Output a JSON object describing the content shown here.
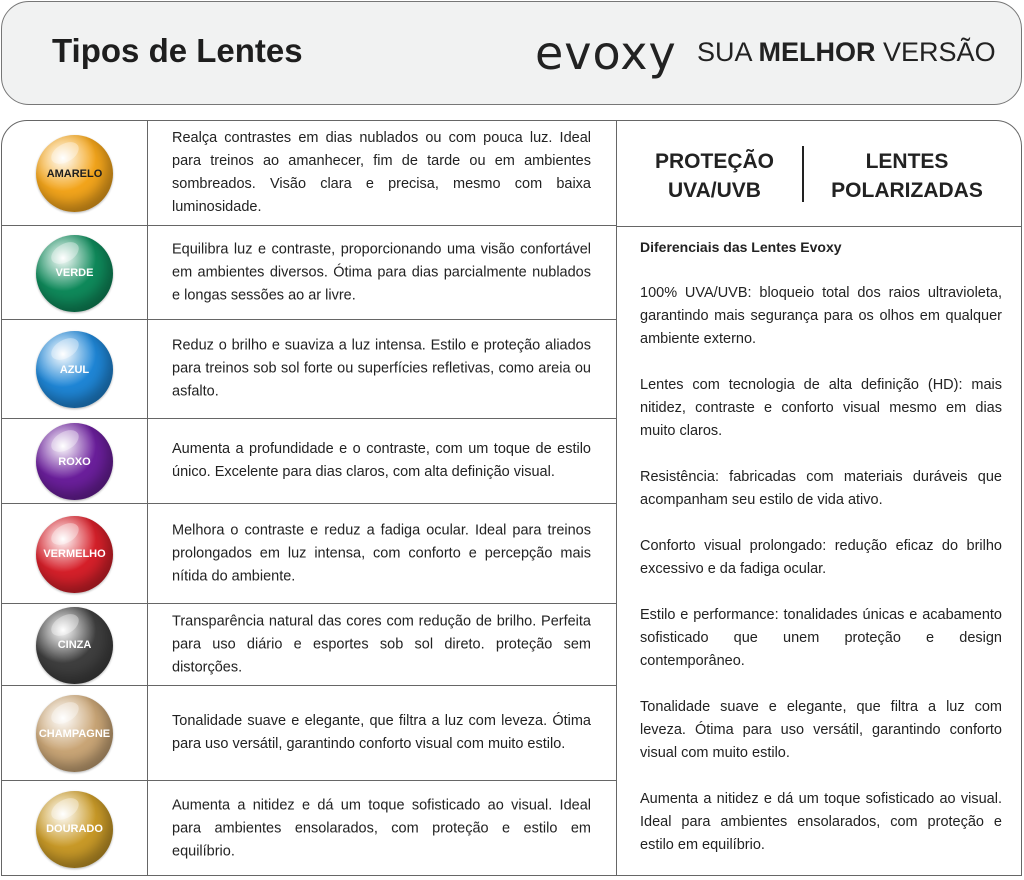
{
  "header": {
    "title": "Tipos de Lentes",
    "logo": "evoxy",
    "slogan_pre": "SUA ",
    "slogan_bold": "MELHOR",
    "slogan_post": " VERSÃO"
  },
  "lenses": [
    {
      "name": "AMARELO",
      "color": "#f3a51c",
      "text_color": "#1e1e1e",
      "description": "Realça contrastes em dias nublados ou com pouca luz. Ideal para treinos ao amanhecer, fim de tarde ou em ambientes sombreados. Visão clara e precisa, mesmo com baixa luminosidade."
    },
    {
      "name": "VERDE",
      "color": "#0f8a5b",
      "text_color": "#ffffff",
      "description": "Equilibra luz e contraste, proporcionando uma visão confortável em ambientes diversos. Ótima para dias parcialmente nublados e longas sessões ao ar livre."
    },
    {
      "name": "AZUL",
      "color": "#1f86d6",
      "text_color": "#ffffff",
      "description": "Reduz o brilho e suaviza a luz intensa. Estilo e proteção aliados para treinos sob sol forte ou superfícies refletivas, como areia ou asfalto."
    },
    {
      "name": "ROXO",
      "color": "#6b1f9c",
      "text_color": "#ffffff",
      "description": "Aumenta a profundidade e o contraste, com um toque de estilo único. Excelente para dias claros, com alta definição visual."
    },
    {
      "name": "VERMELHO",
      "color": "#d6202a",
      "text_color": "#ffffff",
      "description": "Melhora o contraste e reduz a fadiga ocular. Ideal para treinos prolongados em luz intensa, com conforto e percepção mais nítida do ambiente."
    },
    {
      "name": "CINZA",
      "color": "#3f3f3f",
      "text_color": "#ffffff",
      "description": "Transparência natural das cores com redução de brilho. Perfeita para uso diário e esportes sob sol direto. proteção sem distorções."
    },
    {
      "name": "CHAMPAGNE",
      "color": "#caa677",
      "text_color": "#ffffff",
      "description": "Tonalidade suave e elegante, que filtra a luz com leveza. Ótima para uso versátil, garantindo conforto visual com muito estilo."
    },
    {
      "name": "DOURADO",
      "color": "#c99a28",
      "text_color": "#ffffff",
      "description": "Aumenta a nitidez e dá um toque sofisticado ao visual. Ideal para ambientes ensolarados, com proteção e estilo em equilíbrio."
    }
  ],
  "features": {
    "left": "PROTEÇÃO UVA/UVB",
    "right": "LENTES POLARIZADAS"
  },
  "differentials": {
    "title": "Diferenciais das Lentes Evoxy",
    "items": [
      "100% UVA/UVB: bloqueio total dos raios ultravioleta, garantindo mais segurança para os olhos em qualquer ambiente externo.",
      "Lentes com tecnologia de alta definição (HD): mais nitidez, contraste e conforto visual mesmo em dias muito claros.",
      "Resistência: fabricadas com materiais duráveis que acompanham seu estilo de vida ativo.",
      "Conforto visual prolongado: redução eficaz do brilho excessivo e da fadiga ocular.",
      "Estilo e performance: tonalidades únicas e acabamento sofisticado que unem proteção e design contemporâneo.",
      "Tonalidade suave e elegante, que filtra a luz com leveza. Ótima para uso versátil, garantindo conforto visual com muito estilo.",
      "Aumenta a nitidez e dá um toque sofisticado ao visual. Ideal para ambientes ensolarados, com proteção e estilo em equilíbrio."
    ]
  }
}
